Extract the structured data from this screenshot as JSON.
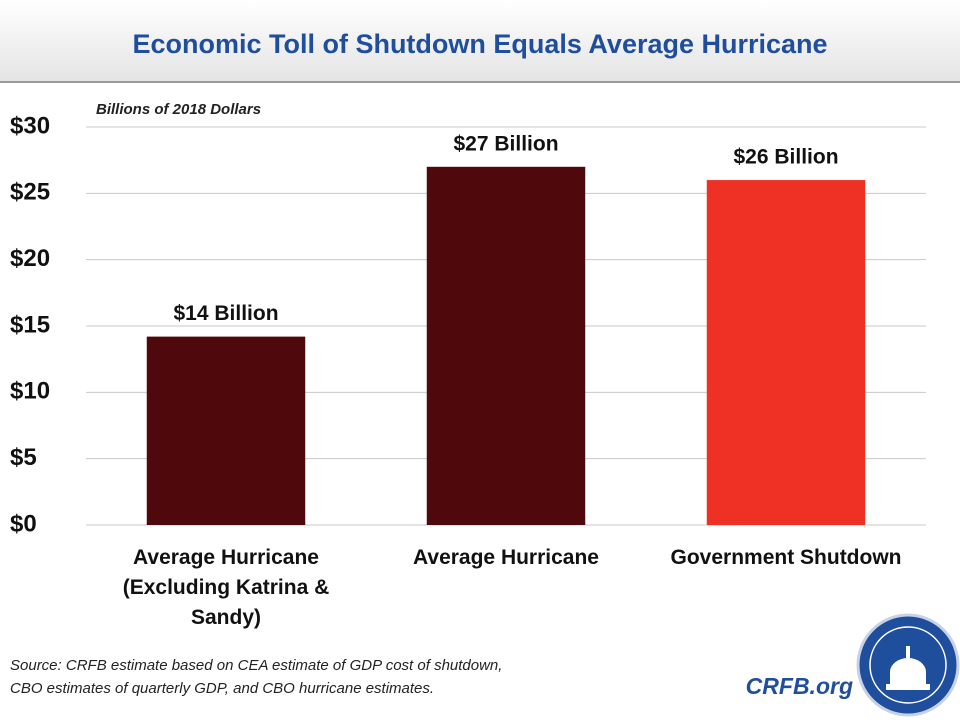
{
  "chart_data": {
    "type": "bar",
    "title": "Economic Toll of Shutdown Equals Average Hurricane",
    "y_axis_label": "Billions of 2018 Dollars",
    "categories": [
      "Average Hurricane (Excluding Katrina & Sandy)",
      "Average Hurricane",
      "Government Shutdown"
    ],
    "values": [
      14.2,
      27,
      26
    ],
    "value_labels": [
      "$14 Billion",
      "$27 Billion",
      "$26 Billion"
    ],
    "colors": [
      "#4f080b",
      "#4f080b",
      "#ee3124"
    ],
    "ylim": [
      0,
      30
    ],
    "yticks": [
      {
        "value": 0,
        "label": "$0"
      },
      {
        "value": 5,
        "label": "$5"
      },
      {
        "value": 10,
        "label": "$10"
      },
      {
        "value": 15,
        "label": "$15"
      },
      {
        "value": 20,
        "label": "$20"
      },
      {
        "value": 25,
        "label": "$25"
      },
      {
        "value": 30,
        "label": "$30"
      }
    ],
    "grid": true,
    "source": [
      "Source: CRFB estimate based on CEA estimate of GDP cost of shutdown,",
      "CBO estimates of quarterly GDP, and CBO hurricane estimates."
    ],
    "footer": "CRFB.org"
  }
}
